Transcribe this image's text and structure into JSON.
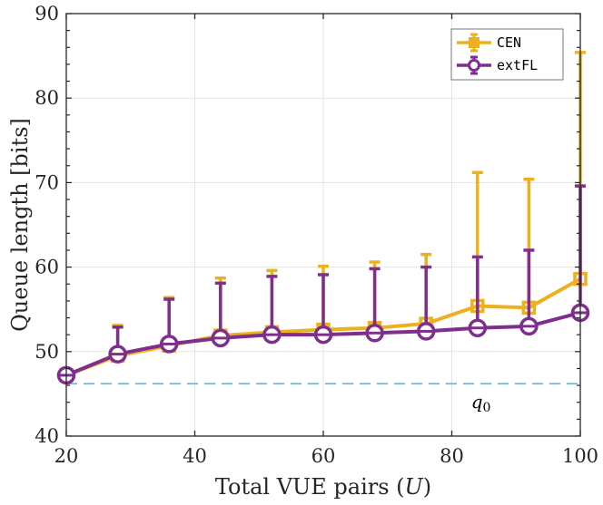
{
  "chart_data": {
    "type": "line",
    "title": "",
    "xlabel": "Total VUE pairs (U)",
    "xlabel_parts": {
      "text": "Total VUE pairs (",
      "var": "U",
      "close": ")"
    },
    "ylabel": "Queue length [bits]",
    "xlim": [
      20,
      100
    ],
    "ylim": [
      40,
      90
    ],
    "xticks": [
      20,
      40,
      60,
      80,
      100
    ],
    "yticks": [
      40,
      50,
      60,
      70,
      80,
      90
    ],
    "xtick_labels": [
      "20",
      "40",
      "60",
      "80",
      "100"
    ],
    "ytick_labels": [
      "40",
      "50",
      "60",
      "70",
      "80",
      "90"
    ],
    "yminor_step": 2,
    "grid": true,
    "legend_position": "top-right",
    "x": [
      20,
      28,
      36,
      44,
      52,
      60,
      68,
      76,
      84,
      92,
      100
    ],
    "series": [
      {
        "name": "CEN",
        "color": "#EDB120",
        "marker": "square",
        "values": [
          47.2,
          49.5,
          50.7,
          51.9,
          52.3,
          52.6,
          52.8,
          53.3,
          55.4,
          55.2,
          58.6
        ],
        "error_upper": [
          47.2,
          53.1,
          56.4,
          58.7,
          59.6,
          60.1,
          60.6,
          61.5,
          71.2,
          70.4,
          85.4
        ]
      },
      {
        "name": "extFL",
        "color": "#7E2F8E",
        "marker": "circle",
        "values": [
          47.2,
          49.7,
          50.9,
          51.6,
          52.0,
          52.0,
          52.2,
          52.4,
          52.8,
          53.0,
          54.6
        ],
        "error_upper": [
          47.2,
          52.9,
          56.2,
          58.1,
          58.9,
          59.1,
          59.8,
          60.0,
          61.2,
          62.0,
          69.6
        ]
      }
    ],
    "reference_line": {
      "name": "q0",
      "label_base": "q",
      "label_sub": "0",
      "value": 46.2,
      "color": "#4DBEEE",
      "style": "dashed"
    }
  }
}
